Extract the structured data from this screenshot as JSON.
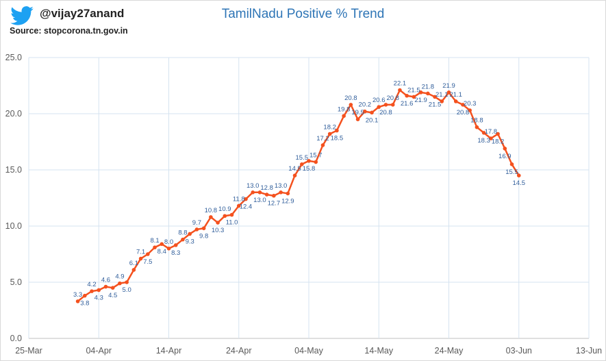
{
  "header": {
    "handle": "@vijay27anand",
    "source": "Source: stopcorona.tn.gov.in",
    "logo_icon": "twitter-bird-icon",
    "logo_color": "#1da1f2"
  },
  "chart_data": {
    "type": "line",
    "title": "TamilNadu Positive % Trend",
    "xlabel": "",
    "ylabel": "",
    "ylim": [
      0,
      25
    ],
    "yticks": [
      "0.0",
      "5.0",
      "10.0",
      "15.0",
      "20.0",
      "25.0"
    ],
    "xlim": [
      "25-Mar",
      "13-Jun"
    ],
    "xticks": [
      "25-Mar",
      "04-Apr",
      "14-Apr",
      "24-Apr",
      "04-May",
      "14-May",
      "24-May",
      "03-Jun",
      "13-Jun"
    ],
    "grid": true,
    "line_color": "#f4511e",
    "label_color": "#2f5d9a",
    "x_start": "01-Apr",
    "x_end": "03-Jun",
    "values": [
      3.3,
      3.8,
      4.2,
      4.3,
      4.6,
      4.5,
      4.9,
      5.0,
      6.1,
      7.1,
      7.5,
      8.1,
      8.4,
      8.0,
      8.3,
      8.8,
      9.3,
      9.7,
      9.8,
      10.8,
      10.3,
      10.9,
      11.0,
      11.8,
      12.4,
      13.0,
      13.0,
      12.8,
      12.7,
      13.0,
      12.9,
      14.5,
      15.5,
      15.8,
      15.7,
      17.2,
      18.2,
      18.5,
      19.8,
      20.8,
      19.5,
      20.2,
      20.1,
      20.6,
      20.8,
      20.8,
      22.1,
      21.6,
      21.5,
      21.9,
      21.8,
      21.5,
      21.1,
      21.9,
      21.1,
      20.8,
      20.3,
      18.8,
      18.3,
      17.8,
      18.2,
      16.9,
      15.5,
      14.5
    ]
  }
}
